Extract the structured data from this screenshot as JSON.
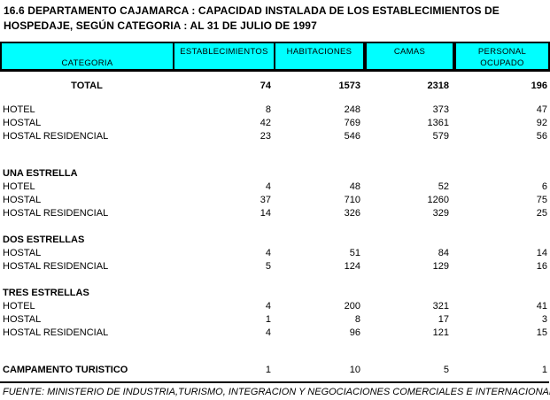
{
  "page": {
    "title_line1": "16.6 DEPARTAMENTO CAJAMARCA : CAPACIDAD INSTALADA DE LOS ESTABLECIMIENTOS DE",
    "title_line2": "HOSPEDAJE, SEGÚN CATEGORIA : AL 31 DE JULIO DE 1997",
    "source": "FUENTE: MINISTERIO DE INDUSTRIA,TURISMO, INTEGRACION Y NEGOCIACIONES COMERCIALES E INTERNACIONALES"
  },
  "colors": {
    "header_bg": "#00FFFF",
    "border": "#000000",
    "text": "#000000",
    "background": "#FFFFFF"
  },
  "table": {
    "header": {
      "categoria": "CATEGORIA",
      "establecimientos": "ESTABLECIMIENTOS",
      "habitaciones": "HABITACIONES",
      "camas": "CAMAS",
      "personal_line1": "PERSONAL",
      "personal_line2": "OCUPADO"
    },
    "total": {
      "label": "TOTAL",
      "values": [
        "74",
        "1573",
        "2318",
        "196"
      ]
    },
    "total_breakdown": [
      {
        "label": "HOTEL",
        "values": [
          "8",
          "248",
          "373",
          "47"
        ]
      },
      {
        "label": "HOSTAL",
        "values": [
          "42",
          "769",
          "1361",
          "92"
        ]
      },
      {
        "label": "HOSTAL RESIDENCIAL",
        "values": [
          "23",
          "546",
          "579",
          "56"
        ]
      }
    ],
    "sections": [
      {
        "title": "UNA ESTRELLA",
        "rows": [
          {
            "label": "HOTEL",
            "values": [
              "4",
              "48",
              "52",
              "6"
            ]
          },
          {
            "label": "HOSTAL",
            "values": [
              "37",
              "710",
              "1260",
              "75"
            ]
          },
          {
            "label": "HOSTAL RESIDENCIAL",
            "values": [
              "14",
              "326",
              "329",
              "25"
            ]
          }
        ]
      },
      {
        "title": "DOS ESTRELLAS",
        "rows": [
          {
            "label": "HOSTAL",
            "values": [
              "4",
              "51",
              "84",
              "14"
            ]
          },
          {
            "label": "HOSTAL RESIDENCIAL",
            "values": [
              "5",
              "124",
              "129",
              "16"
            ]
          }
        ]
      },
      {
        "title": "TRES ESTRELLAS",
        "rows": [
          {
            "label": "HOTEL",
            "values": [
              "4",
              "200",
              "321",
              "41"
            ]
          },
          {
            "label": "HOSTAL",
            "values": [
              "1",
              "8",
              "17",
              "3"
            ]
          },
          {
            "label": "HOSTAL RESIDENCIAL",
            "values": [
              "4",
              "96",
              "121",
              "15"
            ]
          }
        ]
      }
    ],
    "campamento": {
      "label": "CAMPAMENTO TURISTICO",
      "values": [
        "1",
        "10",
        "5",
        "1"
      ]
    }
  }
}
